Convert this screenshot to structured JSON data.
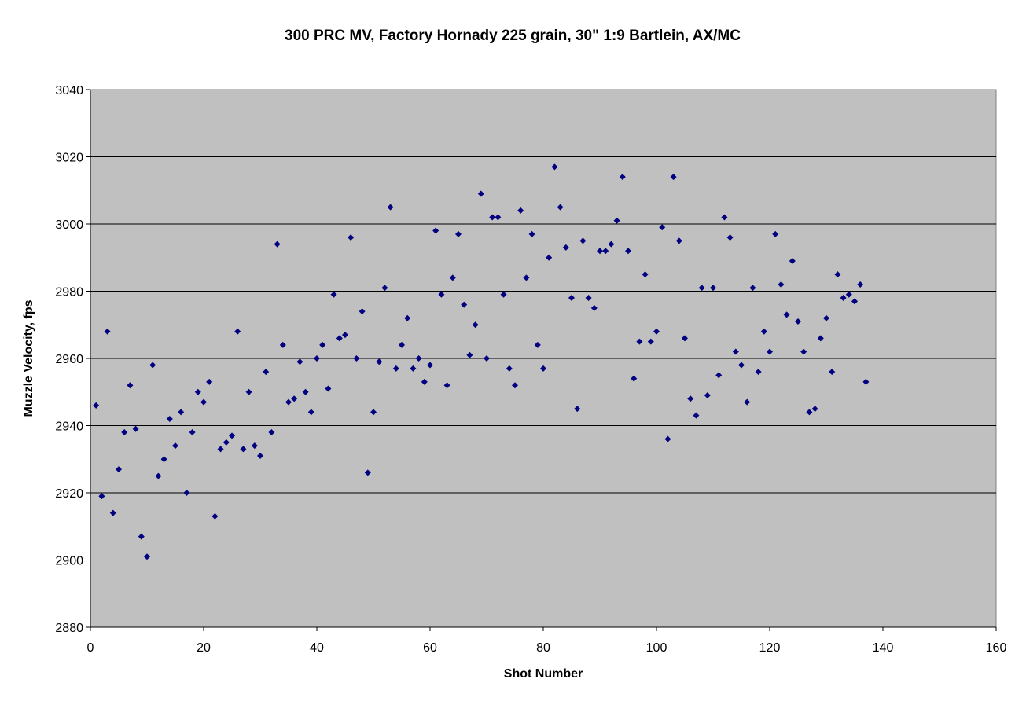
{
  "chart_data": {
    "type": "scatter",
    "title": "300 PRC MV, Factory Hornady 225 grain, 30\" 1:9 Bartlein, AX/MC",
    "xlabel": "Shot Number",
    "ylabel": "Muzzle Velocity, fps",
    "xlim": [
      0,
      160
    ],
    "ylim": [
      2880,
      3040
    ],
    "x_ticks": [
      0,
      20,
      40,
      60,
      80,
      100,
      120,
      140,
      160
    ],
    "y_ticks": [
      2880,
      2900,
      2920,
      2940,
      2960,
      2980,
      3000,
      3020,
      3040
    ],
    "grid": "horizontal",
    "legend": "none",
    "colors": {
      "plot_background": "#c0c0c0",
      "marker": "#000080",
      "gridline": "#000000"
    },
    "series": [
      {
        "marker": "diamond",
        "x": [
          1,
          2,
          3,
          4,
          5,
          6,
          7,
          8,
          9,
          10,
          11,
          12,
          13,
          14,
          15,
          16,
          17,
          18,
          19,
          20,
          21,
          22,
          23,
          24,
          25,
          26,
          27,
          28,
          29,
          30,
          31,
          32,
          33,
          34,
          35,
          36,
          37,
          38,
          39,
          40,
          41,
          42,
          43,
          44,
          45,
          46,
          47,
          48,
          49,
          50,
          51,
          52,
          53,
          54,
          55,
          56,
          57,
          58,
          59,
          60,
          61,
          62,
          63,
          64,
          65,
          66,
          67,
          68,
          69,
          70,
          71,
          72,
          73,
          74,
          75,
          76,
          77,
          78,
          79,
          80,
          81,
          82,
          83,
          84,
          85,
          86,
          87,
          88,
          89,
          90,
          91,
          92,
          93,
          94,
          95,
          96,
          97,
          98,
          99,
          100,
          101,
          102,
          103,
          104,
          105,
          106,
          107,
          108,
          109,
          110,
          111,
          112,
          113,
          114,
          115,
          116,
          117,
          118,
          119,
          120,
          121,
          122,
          123,
          124,
          125,
          126,
          127,
          128,
          129,
          130,
          131,
          132,
          133,
          134,
          135,
          136,
          137
        ],
        "y": [
          2946,
          2919,
          2968,
          2914,
          2927,
          2938,
          2952,
          2939,
          2907,
          2901,
          2958,
          2925,
          2930,
          2942,
          2934,
          2944,
          2920,
          2938,
          2950,
          2947,
          2953,
          2913,
          2933,
          2935,
          2937,
          2968,
          2933,
          2950,
          2934,
          2931,
          2956,
          2938,
          2994,
          2964,
          2947,
          2948,
          2959,
          2950,
          2944,
          2960,
          2964,
          2951,
          2979,
          2966,
          2967,
          2996,
          2960,
          2974,
          2926,
          2944,
          2959,
          2981,
          3005,
          2957,
          2964,
          2972,
          2957,
          2960,
          2953,
          2958,
          2998,
          2979,
          2952,
          2984,
          2997,
          2976,
          2961,
          2970,
          3009,
          2960,
          3002,
          3002,
          2979,
          2957,
          2952,
          3004,
          2984,
          2997,
          2964,
          2957,
          2990,
          3017,
          3005,
          2993,
          2978,
          2945,
          2995,
          2978,
          2975,
          2992,
          2992,
          2994,
          3001,
          3014,
          2992,
          2954,
          2965,
          2985,
          2965,
          2968,
          2999,
          2936,
          3014,
          2995,
          2966,
          2948,
          2943,
          2981,
          2949,
          2981,
          2955,
          3002,
          2996,
          2962,
          2958,
          2947,
          2981,
          2956,
          2968,
          2962,
          2997,
          2982,
          2973,
          2989,
          2971,
          2962,
          2944,
          2945,
          2966,
          2972,
          2956,
          2985,
          2978,
          2979,
          2977,
          2982,
          2953
        ]
      }
    ]
  }
}
